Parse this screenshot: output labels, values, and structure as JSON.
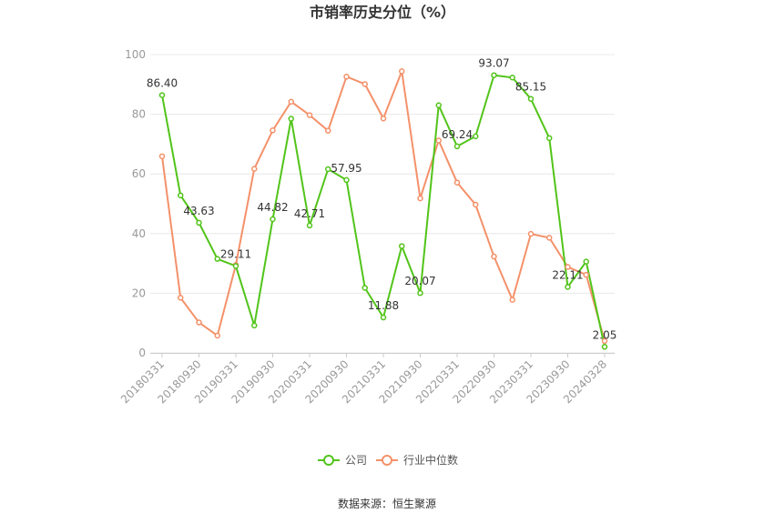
{
  "chart_data": {
    "type": "line",
    "title": "市销率历史分位（%）",
    "source": "数据来源：恒生聚源",
    "ylim": [
      0,
      100
    ],
    "yticks": [
      0,
      20,
      40,
      60,
      80,
      100
    ],
    "grid": "horizontal",
    "legend_position": "bottom",
    "x": [
      "20180331",
      "20180630",
      "20180930",
      "20181231",
      "20190331",
      "20190630",
      "20190930",
      "20191231",
      "20200331",
      "20200630",
      "20200930",
      "20201231",
      "20210331",
      "20210630",
      "20210930",
      "20211231",
      "20220331",
      "20220630",
      "20220930",
      "20221231",
      "20230331",
      "20230630",
      "20230930",
      "20231231",
      "20240328"
    ],
    "x_tick_labels": [
      "20180331",
      "20180930",
      "20190331",
      "20190930",
      "20200331",
      "20200930",
      "20210331",
      "20210930",
      "20220331",
      "20220930",
      "20230331",
      "20230930",
      "20240328"
    ],
    "series": [
      {
        "name": "公司",
        "color": "#52c41a",
        "values": [
          86.4,
          52.8,
          43.63,
          31.5,
          29.11,
          9.2,
          44.82,
          78.5,
          42.71,
          61.6,
          57.95,
          21.8,
          11.88,
          35.8,
          20.07,
          83.0,
          69.24,
          72.6,
          93.07,
          92.3,
          85.15,
          72.0,
          22.11,
          30.6,
          2.05
        ],
        "labels": {
          "0": "86.40",
          "2": "43.63",
          "4": "29.11",
          "6": "44.82",
          "8": "42.71",
          "10": "57.95",
          "12": "11.88",
          "14": "20.07",
          "16": "69.24",
          "18": "93.07",
          "20": "85.15",
          "22": "22.11",
          "24": "2.05"
        }
      },
      {
        "name": "行业中位数",
        "color": "#f4916a",
        "values": [
          65.9,
          18.5,
          10.2,
          5.8,
          29.5,
          61.7,
          74.6,
          84.2,
          79.7,
          74.5,
          92.6,
          90.1,
          78.6,
          94.4,
          51.8,
          71.2,
          57.1,
          49.7,
          32.3,
          17.8,
          39.9,
          38.6,
          28.8,
          26.2,
          4.0
        ]
      }
    ]
  }
}
